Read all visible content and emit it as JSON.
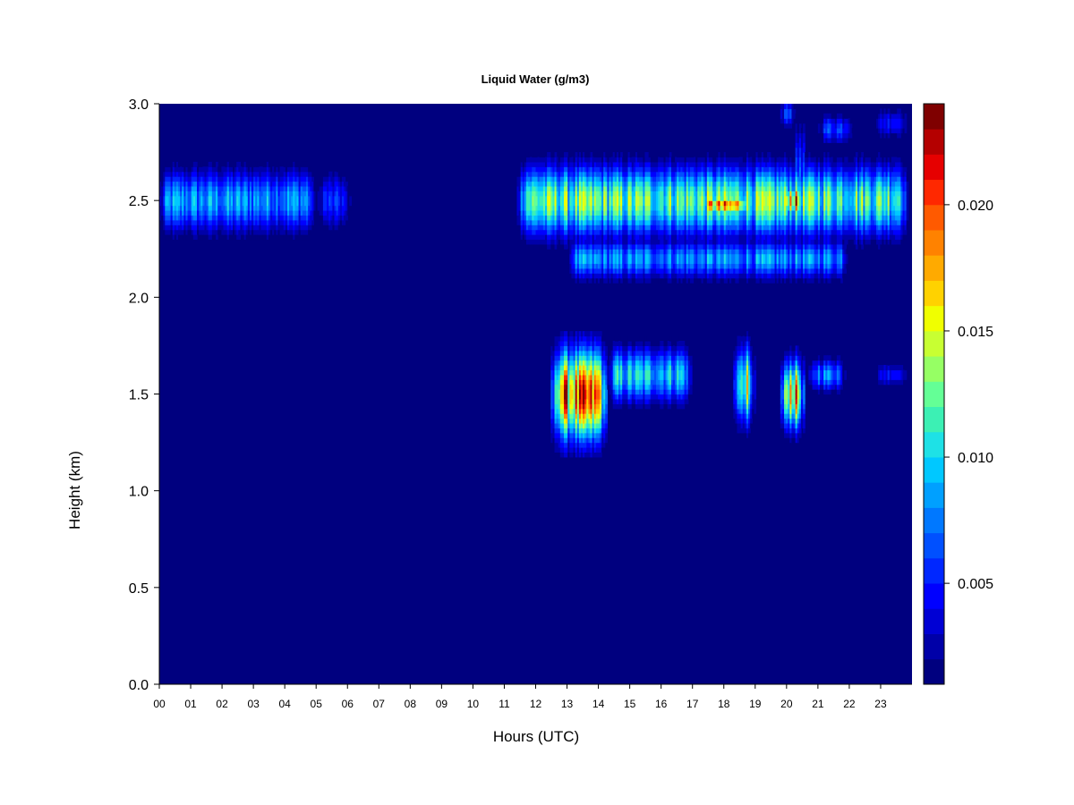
{
  "chart_data": {
    "type": "heatmap",
    "title": "Liquid Water (g/m3)",
    "xlabel": "Hours (UTC)",
    "ylabel": "Height (km)",
    "x_ticks": [
      "00",
      "01",
      "02",
      "03",
      "04",
      "05",
      "06",
      "07",
      "08",
      "09",
      "10",
      "11",
      "12",
      "13",
      "14",
      "15",
      "16",
      "17",
      "18",
      "19",
      "20",
      "21",
      "22",
      "23"
    ],
    "y_ticks": [
      "0.0",
      "0.5",
      "1.0",
      "1.5",
      "2.0",
      "2.5",
      "3.0"
    ],
    "xlim": [
      0,
      23.9
    ],
    "ylim": [
      0,
      3.0
    ],
    "colorbar": {
      "ticks": [
        "0.005",
        "0.010",
        "0.015",
        "0.020"
      ],
      "tick_values": [
        0.005,
        0.01,
        0.015,
        0.02
      ],
      "range": [
        0.001,
        0.024
      ],
      "colors": [
        "#00007f",
        "#0000a8",
        "#0000d4",
        "#0000ff",
        "#0027ff",
        "#0050ff",
        "#0078ff",
        "#00a0ff",
        "#00c8ff",
        "#1ee1e6",
        "#3cf0b4",
        "#64ff96",
        "#96ff64",
        "#c8ff32",
        "#f0ff00",
        "#ffd200",
        "#ffaa00",
        "#ff8200",
        "#ff5a00",
        "#ff2800",
        "#e60000",
        "#b40000",
        "#7f0000"
      ]
    },
    "background_value": 0.001,
    "cloud_features": [
      {
        "hours": [
          0.0,
          5.0
        ],
        "center_km": 2.5,
        "half_thickness_km": 0.22,
        "peak": 0.0095
      },
      {
        "hours": [
          5.0,
          6.1
        ],
        "center_km": 2.5,
        "half_thickness_km": 0.2,
        "peak": 0.006
      },
      {
        "hours": [
          11.4,
          23.9
        ],
        "center_km": 2.5,
        "half_thickness_km": 0.25,
        "peak": 0.014
      },
      {
        "hours": [
          13.0,
          22.0
        ],
        "center_km": 2.2,
        "half_thickness_km": 0.14,
        "peak": 0.009
      },
      {
        "hours": [
          17.3,
          18.9
        ],
        "center_km": 2.48,
        "half_thickness_km": 0.07,
        "peak": 0.02
      },
      {
        "hours": [
          19.8,
          20.6
        ],
        "center_km": 2.5,
        "half_thickness_km": 0.12,
        "peak": 0.021
      },
      {
        "hours": [
          20.3,
          20.6
        ],
        "center_km": 2.6,
        "half_thickness_km": 0.4,
        "peak": 0.018
      },
      {
        "hours": [
          19.8,
          20.3
        ],
        "center_km": 2.95,
        "half_thickness_km": 0.1,
        "peak": 0.01
      },
      {
        "hours": [
          21.0,
          22.2
        ],
        "center_km": 2.87,
        "half_thickness_km": 0.1,
        "peak": 0.007
      },
      {
        "hours": [
          22.8,
          23.9
        ],
        "center_km": 2.9,
        "half_thickness_km": 0.1,
        "peak": 0.006
      },
      {
        "hours": [
          12.5,
          14.3
        ],
        "center_km": 1.5,
        "half_thickness_km": 0.33,
        "peak": 0.021
      },
      {
        "hours": [
          14.3,
          17.0
        ],
        "center_km": 1.6,
        "half_thickness_km": 0.2,
        "peak": 0.011
      },
      {
        "hours": [
          18.3,
          19.0
        ],
        "center_km": 1.55,
        "half_thickness_km": 0.28,
        "peak": 0.017
      },
      {
        "hours": [
          19.8,
          20.6
        ],
        "center_km": 1.5,
        "half_thickness_km": 0.25,
        "peak": 0.02
      },
      {
        "hours": [
          20.7,
          21.9
        ],
        "center_km": 1.6,
        "half_thickness_km": 0.12,
        "peak": 0.009
      },
      {
        "hours": [
          22.8,
          23.9
        ],
        "center_km": 1.6,
        "half_thickness_km": 0.08,
        "peak": 0.006
      }
    ]
  }
}
